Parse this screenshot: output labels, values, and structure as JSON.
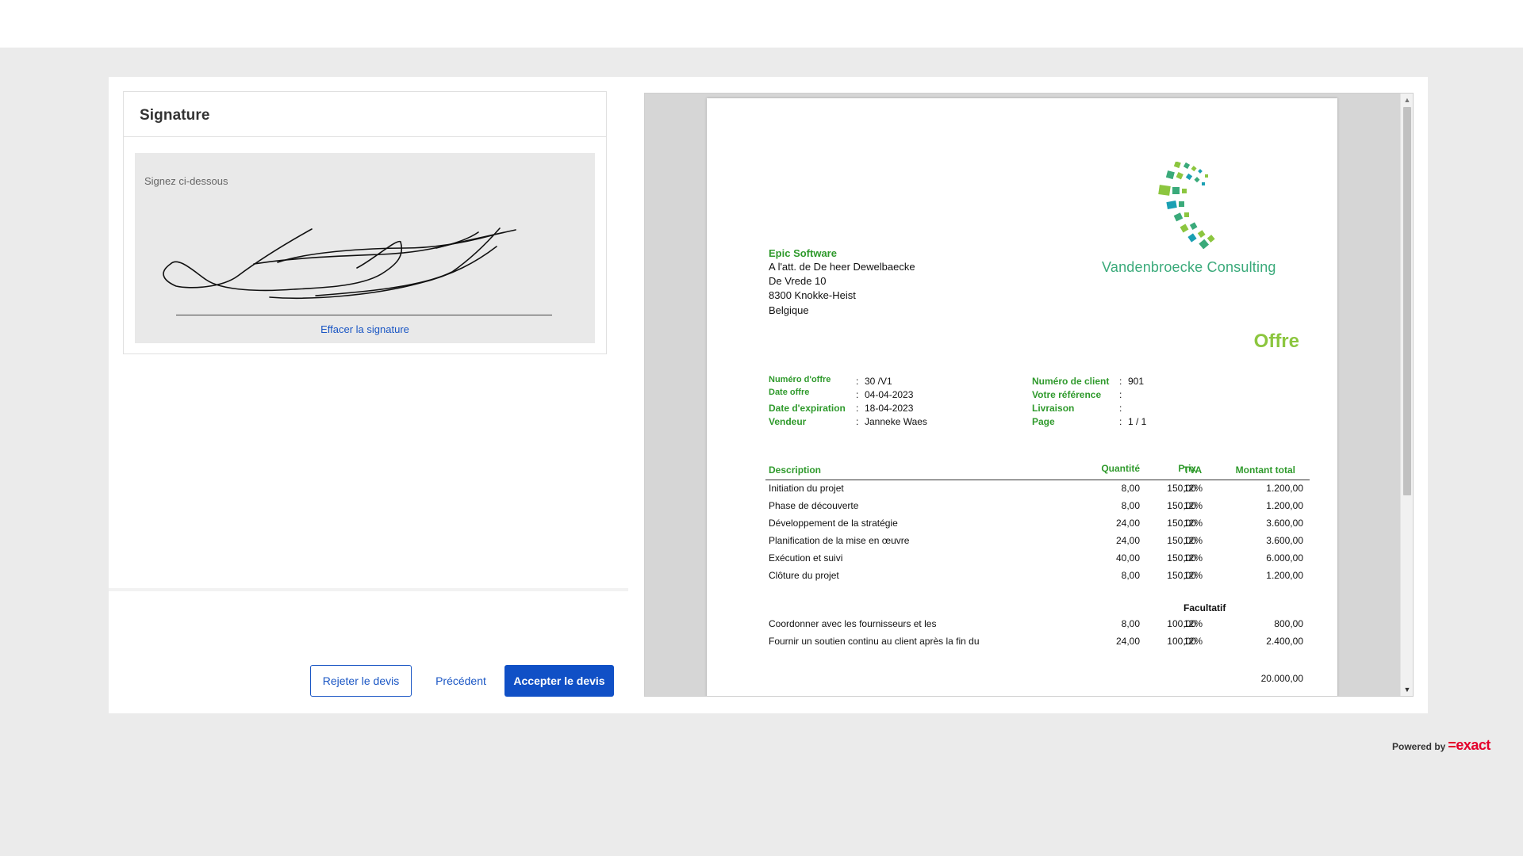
{
  "signature": {
    "title": "Signature",
    "hint": "Signez ci-dessous",
    "clear_label": "Effacer la signature"
  },
  "actions": {
    "reject_label": "Rejeter le devis",
    "previous_label": "Précédent",
    "accept_label": "Accepter le devis"
  },
  "document": {
    "company_logo_text": "Vandenbroecke Consulting",
    "recipient": {
      "name": "Epic Software",
      "attention": "A l'att. de De heer   Dewelbaecke",
      "street": "De Vrede 10",
      "city": "8300  Knokke-Heist",
      "country": "Belgique"
    },
    "doc_title": "Offre",
    "meta_left": [
      {
        "label": "Numéro d'offre",
        "value": "30 /V1"
      },
      {
        "label": "Date offre",
        "value": "04-04-2023"
      },
      {
        "label": "Date d'expiration",
        "value": "18-04-2023"
      },
      {
        "label": "Vendeur",
        "value": "Janneke Waes"
      }
    ],
    "meta_right": [
      {
        "label": "Numéro de client",
        "value": "901"
      },
      {
        "label": "Votre référence",
        "value": ""
      },
      {
        "label": "Livraison",
        "value": ""
      },
      {
        "label": "Page",
        "value": "1 / 1"
      }
    ],
    "table_headers": {
      "description": "Description",
      "quantity": "Quantité",
      "price": "Prix",
      "vat": "TVA",
      "total": "Montant total"
    },
    "lines": [
      {
        "description": "Initiation du projet",
        "quantity": "8,00",
        "price": "150,00",
        "vat": "12%",
        "total": "1.200,00"
      },
      {
        "description": "Phase de découverte",
        "quantity": "8,00",
        "price": "150,00",
        "vat": "12%",
        "total": "1.200,00"
      },
      {
        "description": "Développement de la stratégie",
        "quantity": "24,00",
        "price": "150,00",
        "vat": "12%",
        "total": "3.600,00"
      },
      {
        "description": "Planification de la mise en œuvre",
        "quantity": "24,00",
        "price": "150,00",
        "vat": "12%",
        "total": "3.600,00"
      },
      {
        "description": "Exécution et suivi",
        "quantity": "40,00",
        "price": "150,00",
        "vat": "12%",
        "total": "6.000,00"
      },
      {
        "description": "Clôture du projet",
        "quantity": "8,00",
        "price": "150,00",
        "vat": "12%",
        "total": "1.200,00"
      }
    ],
    "optional_heading": "Facultatif",
    "optional_lines": [
      {
        "description": "Coordonner avec les fournisseurs et les",
        "quantity": "8,00",
        "price": "100,00",
        "vat": "12%",
        "total": "800,00"
      },
      {
        "description": "Fournir un soutien continu au client après la fin du",
        "quantity": "24,00",
        "price": "100,00",
        "vat": "12%",
        "total": "2.400,00"
      }
    ],
    "grand_total": "20.000,00"
  },
  "footer": {
    "powered_by": "Powered by",
    "brand": "=exact"
  },
  "colors": {
    "accent_blue": "#1050c6",
    "doc_green": "#2f9a2c",
    "offre_green": "#8cc63f",
    "brand_red": "#e4002b"
  }
}
